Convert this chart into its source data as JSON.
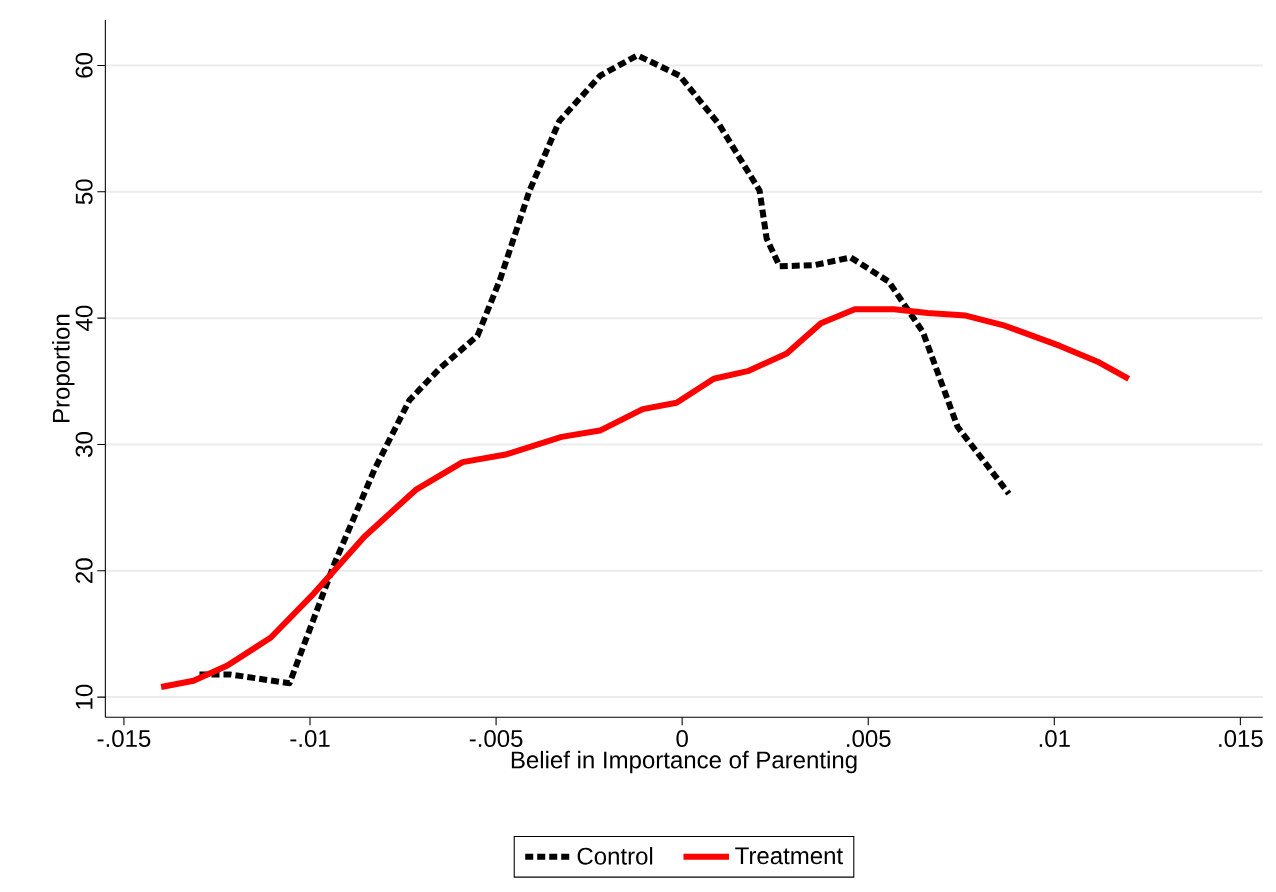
{
  "chart_data": {
    "type": "line",
    "xlabel": "Belief in Importance of Parenting",
    "ylabel": "Proportion",
    "xlim": [
      -0.0155,
      0.0156
    ],
    "ylim": [
      8.4,
      63.6
    ],
    "xticks": [
      {
        "value": -0.015,
        "label": "-.015"
      },
      {
        "value": -0.01,
        "label": "-.01"
      },
      {
        "value": -0.005,
        "label": "-.005"
      },
      {
        "value": 0,
        "label": "0"
      },
      {
        "value": 0.005,
        "label": ".005"
      },
      {
        "value": 0.01,
        "label": ".01"
      },
      {
        "value": 0.015,
        "label": ".015"
      }
    ],
    "yticks": [
      10,
      20,
      30,
      40,
      50,
      60
    ],
    "grid": "y",
    "legend": "bottom",
    "series": [
      {
        "name": "Control",
        "color": "#000000",
        "line_style": "dashed",
        "x": [
          -0.01297,
          -0.01216,
          -0.01055,
          -0.00934,
          -0.00827,
          -0.00733,
          -0.00652,
          -0.0055,
          -0.0049,
          -0.0041,
          -0.0033,
          -0.0022,
          -0.0012,
          -7e-05,
          0.001,
          0.00208,
          0.00227,
          0.00262,
          0.00356,
          0.00453,
          0.00555,
          0.00647,
          0.0074,
          0.00878
        ],
        "values": [
          11.8,
          11.8,
          11.1,
          20.6,
          28.0,
          33.5,
          36.0,
          38.6,
          43.0,
          50.1,
          55.6,
          59.2,
          60.8,
          59.2,
          55.3,
          50.1,
          46.3,
          44.1,
          44.2,
          44.8,
          42.9,
          38.9,
          31.4,
          26.1
        ]
      },
      {
        "name": "Treatment",
        "color": "#ff0000",
        "line_style": "solid",
        "x": [
          -0.014,
          -0.01313,
          -0.01222,
          -0.01106,
          -0.0099,
          -0.00854,
          -0.00716,
          -0.0059,
          -0.00474,
          -0.00324,
          -0.00221,
          -0.00106,
          -0.00015,
          0.00085,
          0.00176,
          0.00281,
          0.00373,
          0.00464,
          0.00569,
          0.0066,
          0.00762,
          0.00867,
          0.01015,
          0.0112,
          0.012
        ],
        "values": [
          10.8,
          11.3,
          12.5,
          14.7,
          18.2,
          22.7,
          26.4,
          28.6,
          29.2,
          30.6,
          31.1,
          32.8,
          33.3,
          35.2,
          35.8,
          37.2,
          39.6,
          40.7,
          40.7,
          40.4,
          40.2,
          39.4,
          37.8,
          36.5,
          35.2
        ]
      }
    ]
  }
}
